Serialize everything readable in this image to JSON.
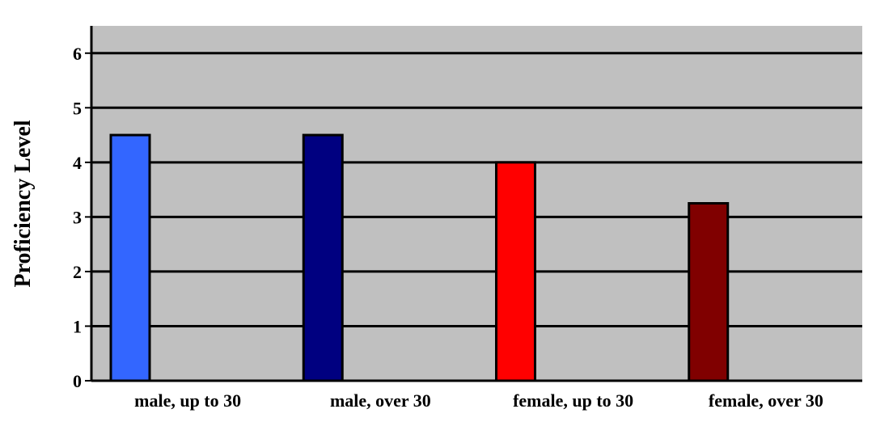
{
  "colors": {
    "plot_background": "#c0c0c0",
    "gridline": "#000000",
    "bar_outline": "#000000"
  },
  "chart_data": {
    "type": "bar",
    "title": "",
    "xlabel": "",
    "ylabel": "Proficiency Level",
    "categories": [
      "male, up to 30",
      "male, over 30",
      "female, up to 30",
      "female, over 30"
    ],
    "values": [
      4.5,
      4.5,
      4.0,
      3.25
    ],
    "bar_colors": [
      "#3366ff",
      "#000080",
      "#ff0000",
      "#800000"
    ],
    "ylim": [
      0,
      6.5
    ],
    "yticks": [
      "0",
      "1",
      "2",
      "3",
      "4",
      "5",
      "6"
    ],
    "grid": true,
    "legend": "none"
  }
}
